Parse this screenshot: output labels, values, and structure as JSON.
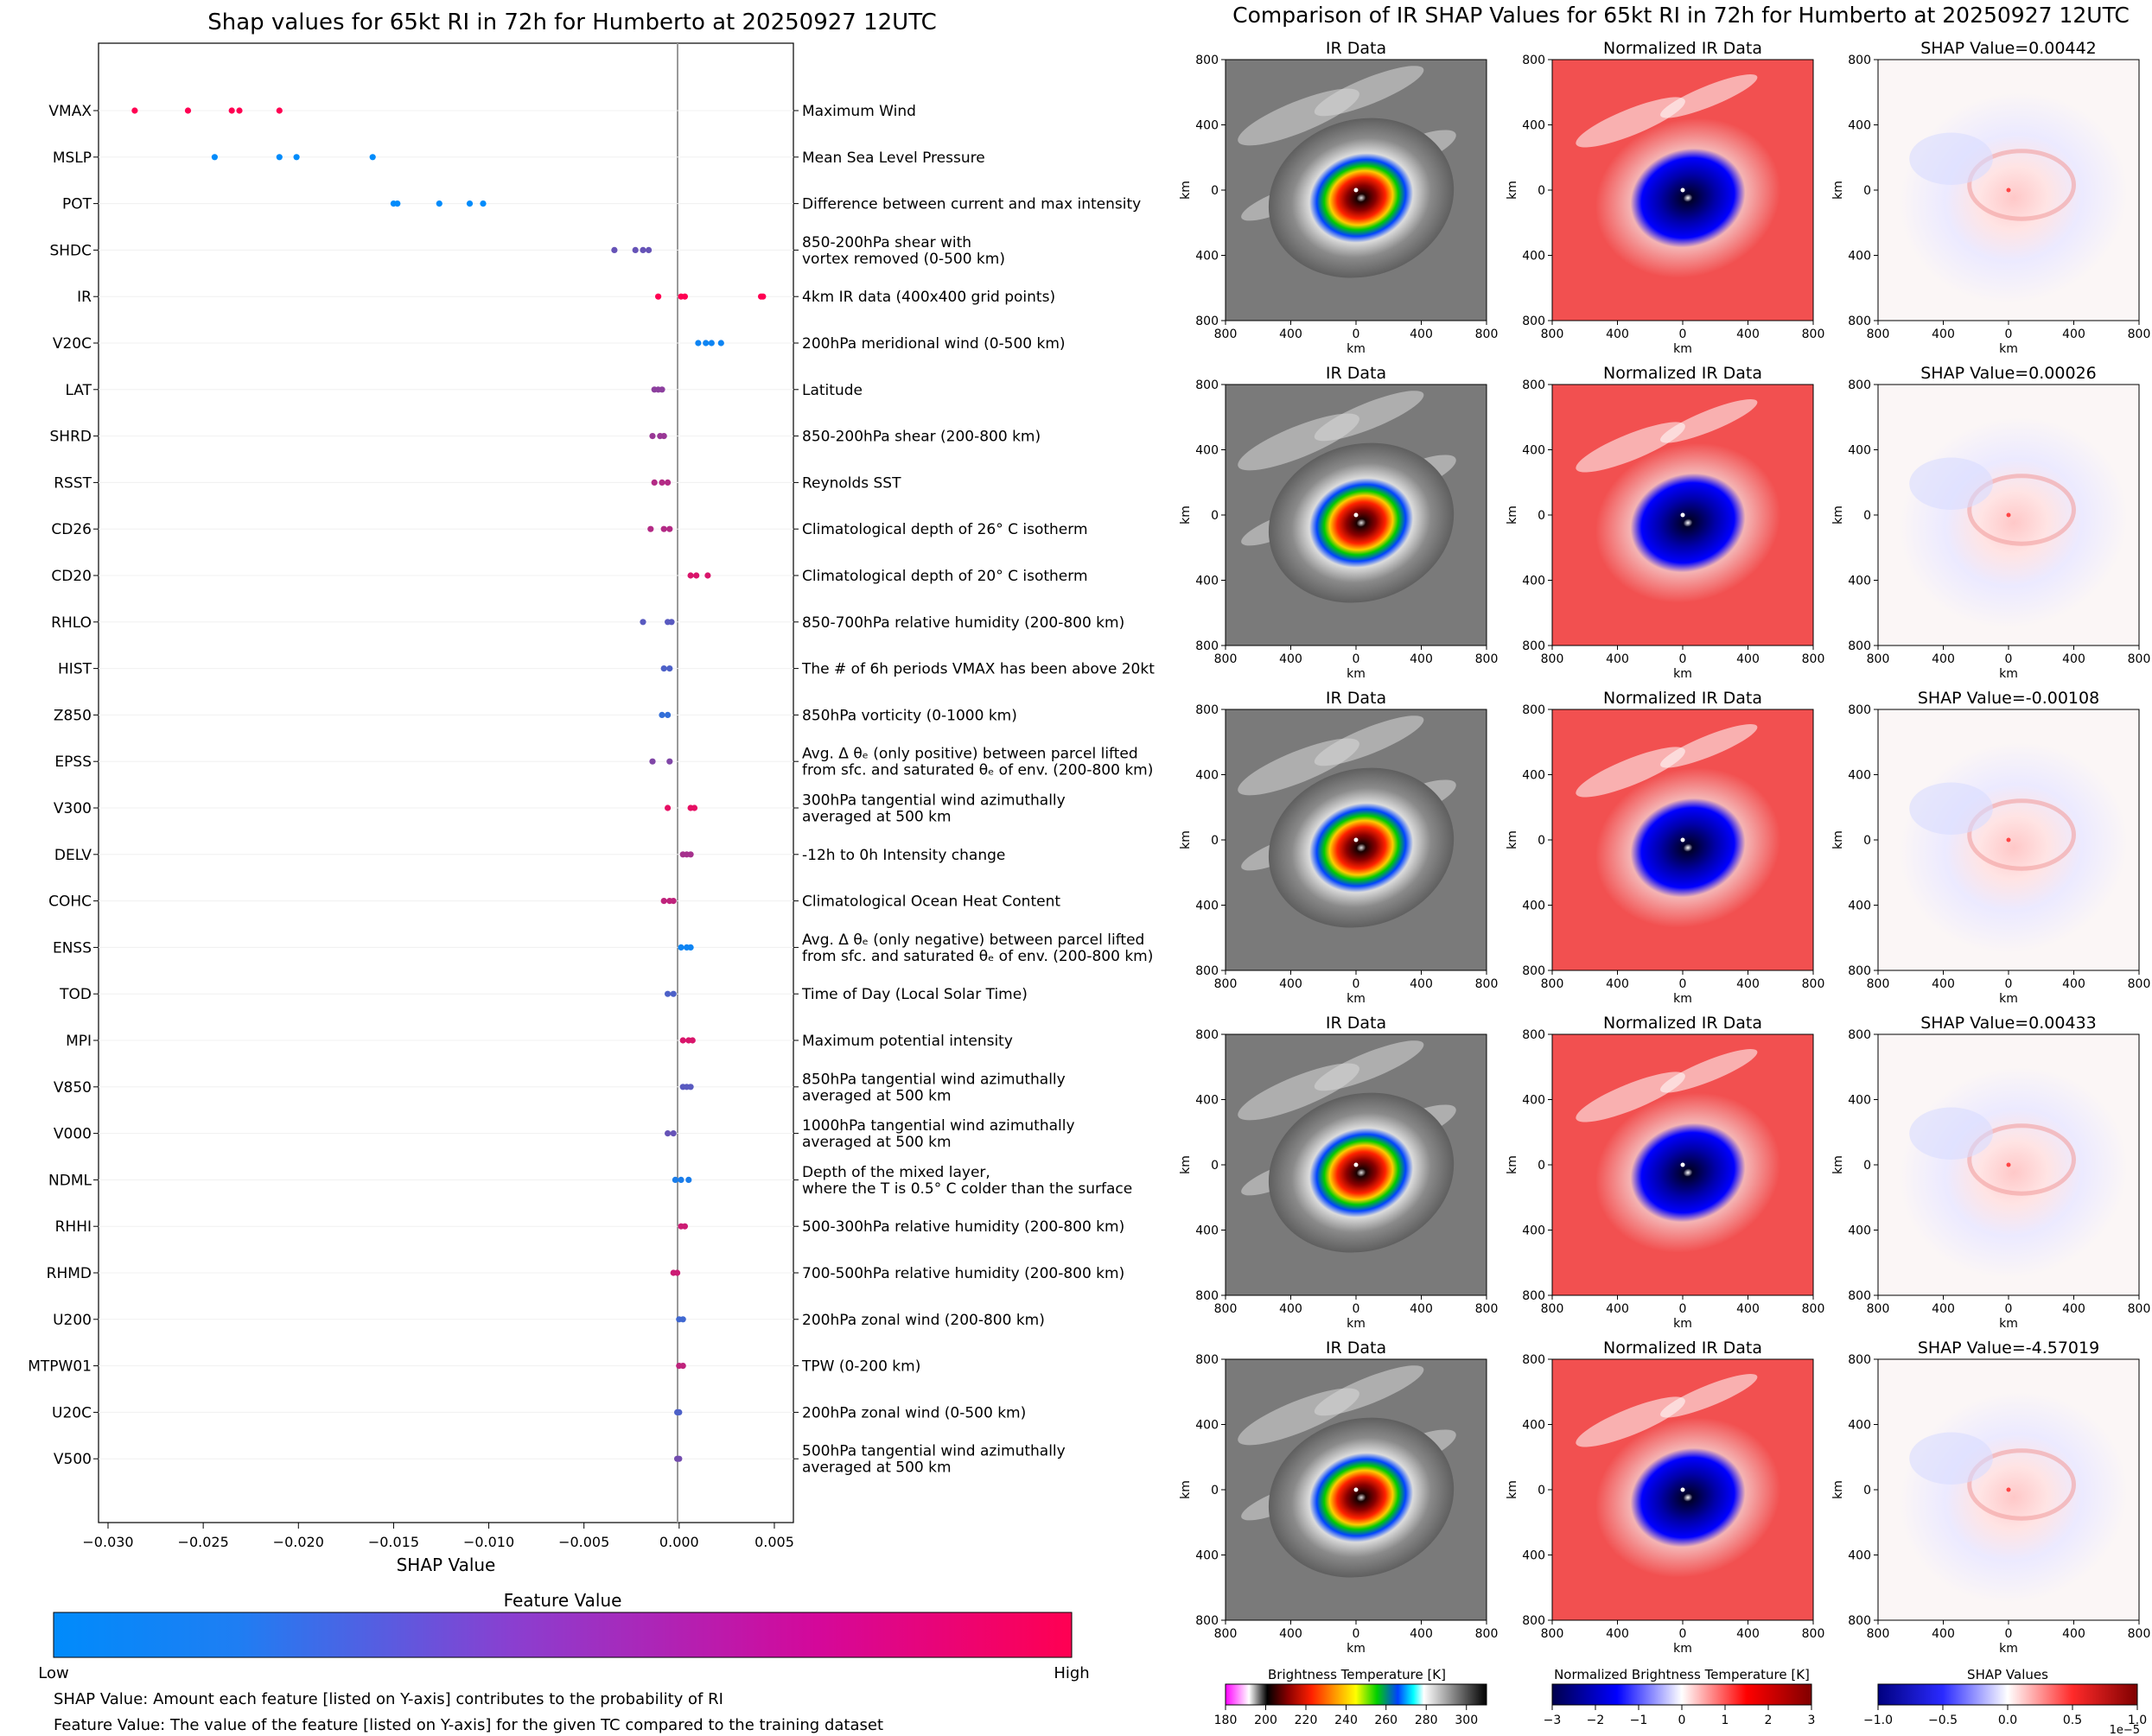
{
  "left": {
    "title": "Shap values for 65kt RI in 72h for Humberto at 20250927 12UTC",
    "xlabel": "SHAP Value",
    "ticks": [
      "−0.030",
      "−0.025",
      "−0.020",
      "−0.015",
      "−0.010",
      "−0.005",
      "0.000",
      "0.005"
    ],
    "colorbar_title": "Feature Value",
    "colorbar_low": "Low",
    "colorbar_high": "High",
    "colors": {
      "low": "#008bfb",
      "high": "#ff0052"
    },
    "footnote1": "SHAP Value: Amount each feature [listed on Y-axis] contributes to the probability of RI",
    "footnote2": "Feature Value: The value of the feature [listed on Y-axis] for the given TC compared to the training dataset"
  },
  "right": {
    "title": "Comparison of IR SHAP Values for 65kt RI in 72h for Humberto at 20250927 12UTC",
    "col1_title": "IR Data",
    "col2_title": "Normalized IR Data",
    "shap_titles": [
      "SHAP Value=0.00442",
      "SHAP Value=0.00026",
      "SHAP Value=-0.00108",
      "SHAP Value=0.00433",
      "SHAP Value=-4.57019"
    ],
    "axis_unit": "km",
    "yticks": [
      "800",
      "400",
      "0",
      "400",
      "800"
    ],
    "xticks": [
      "800",
      "400",
      "0",
      "400",
      "800"
    ],
    "cb1_title": "Brightness Temperature [K]",
    "cb1_ticks": [
      "180",
      "200",
      "220",
      "240",
      "260",
      "280",
      "300"
    ],
    "cb2_title": "Normalized Brightness Temperature [K]",
    "cb2_ticks": [
      "−3",
      "−2",
      "−1",
      "0",
      "1",
      "2",
      "3"
    ],
    "cb3_title": "SHAP Values",
    "cb3_ticks": [
      "−1.0",
      "−0.5",
      "0.0",
      "0.5",
      "1.0"
    ],
    "cb3_exp": "1e−5"
  },
  "chart_data": [
    {
      "type": "scatter",
      "subtype": "shap-beeswarm",
      "title": "Shap values for 65kt RI in 72h for Humberto at 20250927 12UTC",
      "xlabel": "SHAP Value",
      "xlim": [
        -0.0305,
        0.006
      ],
      "features": [
        {
          "name": "VMAX",
          "desc": [
            "Maximum Wind"
          ],
          "fv": 1.0,
          "points": [
            -0.0286,
            -0.0258,
            -0.0235,
            -0.0231,
            -0.021
          ]
        },
        {
          "name": "MSLP",
          "desc": [
            "Mean Sea Level Pressure"
          ],
          "fv": 0.0,
          "points": [
            -0.0244,
            -0.021,
            -0.0201,
            -0.0161
          ]
        },
        {
          "name": "POT",
          "desc": [
            "Difference between current and max intensity"
          ],
          "fv": 0.0,
          "points": [
            -0.015,
            -0.0148,
            -0.0126,
            -0.011,
            -0.0103
          ]
        },
        {
          "name": "SHDC",
          "desc": [
            "850-200hPa shear with",
            "vortex removed (0-500 km)"
          ],
          "fv": 0.4,
          "points": [
            -0.0034,
            -0.0023,
            -0.0019,
            -0.0016
          ]
        },
        {
          "name": "IR",
          "desc": [
            "4km IR data (400x400 grid points)"
          ],
          "fv": 1.0,
          "points": [
            -0.0011,
            0.0001,
            0.0003,
            0.0043,
            0.0044
          ]
        },
        {
          "name": "V20C",
          "desc": [
            "200hPa meridional wind (0-500 km)"
          ],
          "fv": 0.05,
          "points": [
            0.001,
            0.0014,
            0.0017,
            0.0022
          ]
        },
        {
          "name": "LAT",
          "desc": [
            "Latitude"
          ],
          "fv": 0.55,
          "points": [
            -0.0013,
            -0.0011,
            -0.0009
          ]
        },
        {
          "name": "SHRD",
          "desc": [
            "850-200hPa shear (200-800 km)"
          ],
          "fv": 0.6,
          "points": [
            -0.0014,
            -0.001,
            -0.0008
          ]
        },
        {
          "name": "RSST",
          "desc": [
            "Reynolds SST"
          ],
          "fv": 0.7,
          "points": [
            -0.0013,
            -0.0009,
            -0.0006
          ]
        },
        {
          "name": "CD26",
          "desc": [
            "Climatological depth of 26° C isotherm"
          ],
          "fv": 0.7,
          "points": [
            -0.0015,
            -0.0008,
            -0.0005
          ]
        },
        {
          "name": "CD20",
          "desc": [
            "Climatological depth of 20° C isotherm"
          ],
          "fv": 0.85,
          "points": [
            0.0006,
            0.0009,
            0.0015
          ]
        },
        {
          "name": "RHLO",
          "desc": [
            "850-700hPa relative humidity (200-800 km)"
          ],
          "fv": 0.35,
          "points": [
            -0.0019,
            -0.0006,
            -0.0004
          ]
        },
        {
          "name": "HIST",
          "desc": [
            "The # of 6h periods VMAX has been above 20kt"
          ],
          "fv": 0.3,
          "points": [
            -0.0008,
            -0.0005
          ]
        },
        {
          "name": "Z850",
          "desc": [
            "850hPa vorticity (0-1000 km)"
          ],
          "fv": 0.2,
          "points": [
            -0.0009,
            -0.0006
          ]
        },
        {
          "name": "EPSS",
          "desc": [
            "Avg. Δ θₑ (only positive) between parcel lifted",
            "from sfc. and saturated θₑ of env. (200-800 km)"
          ],
          "fv": 0.5,
          "points": [
            -0.0014,
            -0.0005
          ]
        },
        {
          "name": "V300",
          "desc": [
            "300hPa tangential wind azimuthally",
            "averaged at 500 km"
          ],
          "fv": 0.9,
          "points": [
            -0.0006,
            0.0006,
            0.0008
          ]
        },
        {
          "name": "DELV",
          "desc": [
            "-12h to 0h Intensity change"
          ],
          "fv": 0.65,
          "points": [
            0.0002,
            0.0004,
            0.0006
          ]
        },
        {
          "name": "COHC",
          "desc": [
            "Climatological Ocean Heat Content"
          ],
          "fv": 0.75,
          "points": [
            -0.0008,
            -0.0005,
            -0.0003
          ]
        },
        {
          "name": "ENSS",
          "desc": [
            "Avg. Δ θₑ (only negative) between parcel lifted",
            "from sfc. and saturated θₑ of env. (200-800 km)"
          ],
          "fv": 0.05,
          "points": [
            0.0001,
            0.0004,
            0.0006
          ]
        },
        {
          "name": "TOD",
          "desc": [
            "Time of Day (Local Solar Time)"
          ],
          "fv": 0.3,
          "points": [
            -0.0006,
            -0.0003
          ]
        },
        {
          "name": "MPI",
          "desc": [
            "Maximum potential intensity"
          ],
          "fv": 0.85,
          "points": [
            0.0002,
            0.0005,
            0.0007
          ]
        },
        {
          "name": "V850",
          "desc": [
            "850hPa tangential wind azimuthally",
            "averaged at 500 km"
          ],
          "fv": 0.35,
          "points": [
            0.0002,
            0.0004,
            0.0006
          ]
        },
        {
          "name": "V000",
          "desc": [
            "1000hPa tangential wind azimuthally",
            "averaged at 500 km"
          ],
          "fv": 0.4,
          "points": [
            -0.0006,
            -0.0003
          ]
        },
        {
          "name": "NDML",
          "desc": [
            "Depth of the mixed layer,",
            "where the T is 0.5° C colder than the surface"
          ],
          "fv": 0.1,
          "points": [
            -0.0002,
            0.0001,
            0.0005
          ]
        },
        {
          "name": "RHHI",
          "desc": [
            "500-300hPa relative humidity (200-800 km)"
          ],
          "fv": 0.8,
          "points": [
            0.0001,
            0.0003
          ]
        },
        {
          "name": "RHMD",
          "desc": [
            "700-500hPa relative humidity (200-800 km)"
          ],
          "fv": 0.8,
          "points": [
            -0.0003,
            -0.0001
          ]
        },
        {
          "name": "U200",
          "desc": [
            "200hPa zonal wind (200-800 km)"
          ],
          "fv": 0.25,
          "points": [
            0.0,
            0.0002
          ]
        },
        {
          "name": "MTPW01",
          "desc": [
            "TPW (0-200 km)"
          ],
          "fv": 0.75,
          "points": [
            0.0,
            0.0002
          ]
        },
        {
          "name": "U20C",
          "desc": [
            "200hPa zonal wind (0-500 km)"
          ],
          "fv": 0.3,
          "points": [
            -0.0001,
            0.0
          ]
        },
        {
          "name": "V500",
          "desc": [
            "500hPa tangential wind azimuthally",
            "averaged at 500 km"
          ],
          "fv": 0.45,
          "points": [
            -0.0001,
            0.0
          ]
        }
      ]
    },
    {
      "type": "heatmap",
      "title": "Comparison of IR SHAP Values for 65kt RI in 72h for Humberto at 20250927 12UTC",
      "rows": 5,
      "columns": [
        "IR Data",
        "Normalized IR Data",
        "SHAP"
      ],
      "shap_values": [
        "0.00442",
        "0.00026",
        "-0.00108",
        "0.00433",
        "-4.57019"
      ],
      "xlim_km": [
        -800,
        800
      ],
      "ylim_km": [
        -800,
        800
      ],
      "colorbars": [
        {
          "title": "Brightness Temperature [K]",
          "range": [
            180,
            310
          ]
        },
        {
          "title": "Normalized Brightness Temperature [K]",
          "range": [
            -3,
            3
          ]
        },
        {
          "title": "SHAP Values",
          "range": [
            -1e-05,
            1e-05
          ]
        }
      ]
    }
  ]
}
